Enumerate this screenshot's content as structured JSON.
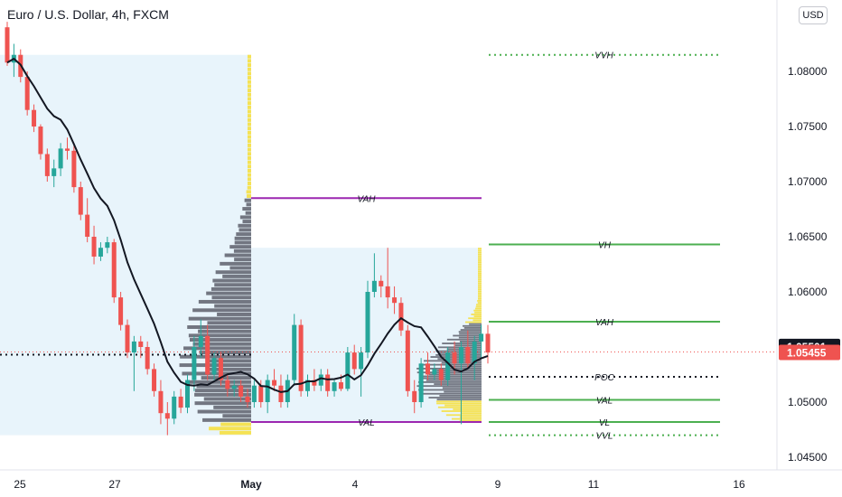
{
  "header": {
    "title": "Euro / U.S. Dollar, 4h, FXCM",
    "currency_button": "USD"
  },
  "chart_data": {
    "type": "candlestick",
    "title": "Euro / U.S. Dollar, 4h, FXCM",
    "x_ticks": [
      "25",
      "27",
      "May",
      "4",
      "9",
      "11",
      "16"
    ],
    "y_ticks": [
      "1.08000",
      "1.07500",
      "1.07000",
      "1.06500",
      "1.06000",
      "1.05500",
      "1.05000",
      "1.04500"
    ],
    "y_range": [
      1.0445,
      1.0855
    ],
    "grid": false,
    "price_labels": {
      "last": "1.05501",
      "current": "1.05455"
    },
    "colors": {
      "up": "#26a69a",
      "down": "#ef5350",
      "ma": "#131722",
      "profile_value": "#f5e04b",
      "profile": "#6b6f7a",
      "vah_val_purple": "#9c27b0",
      "green_lines": "#4caf50",
      "range_bg": "#e8f4fb"
    },
    "candles": [
      {
        "o": 1.084,
        "h": 1.0845,
        "l": 1.0805,
        "c": 1.0808
      },
      {
        "o": 1.0808,
        "h": 1.0825,
        "l": 1.0795,
        "c": 1.0815
      },
      {
        "o": 1.0815,
        "h": 1.082,
        "l": 1.079,
        "c": 1.0795
      },
      {
        "o": 1.0795,
        "h": 1.08,
        "l": 1.076,
        "c": 1.0765
      },
      {
        "o": 1.0765,
        "h": 1.077,
        "l": 1.0745,
        "c": 1.075
      },
      {
        "o": 1.075,
        "h": 1.0752,
        "l": 1.072,
        "c": 1.0725
      },
      {
        "o": 1.0725,
        "h": 1.073,
        "l": 1.07,
        "c": 1.0705
      },
      {
        "o": 1.0705,
        "h": 1.072,
        "l": 1.0695,
        "c": 1.0712
      },
      {
        "o": 1.0712,
        "h": 1.0735,
        "l": 1.0705,
        "c": 1.073
      },
      {
        "o": 1.073,
        "h": 1.074,
        "l": 1.072,
        "c": 1.0728
      },
      {
        "o": 1.0728,
        "h": 1.0735,
        "l": 1.069,
        "c": 1.0695
      },
      {
        "o": 1.0695,
        "h": 1.07,
        "l": 1.0665,
        "c": 1.067
      },
      {
        "o": 1.067,
        "h": 1.0685,
        "l": 1.0645,
        "c": 1.065
      },
      {
        "o": 1.065,
        "h": 1.066,
        "l": 1.0625,
        "c": 1.0632
      },
      {
        "o": 1.0632,
        "h": 1.0645,
        "l": 1.0628,
        "c": 1.064
      },
      {
        "o": 1.064,
        "h": 1.065,
        "l": 1.0635,
        "c": 1.0645
      },
      {
        "o": 1.0645,
        "h": 1.0648,
        "l": 1.059,
        "c": 1.0595
      },
      {
        "o": 1.0595,
        "h": 1.06,
        "l": 1.0565,
        "c": 1.057
      },
      {
        "o": 1.057,
        "h": 1.0575,
        "l": 1.054,
        "c": 1.0545
      },
      {
        "o": 1.0545,
        "h": 1.056,
        "l": 1.051,
        "c": 1.0555
      },
      {
        "o": 1.0555,
        "h": 1.056,
        "l": 1.054,
        "c": 1.055
      },
      {
        "o": 1.055,
        "h": 1.0555,
        "l": 1.0525,
        "c": 1.053
      },
      {
        "o": 1.053,
        "h": 1.0535,
        "l": 1.0505,
        "c": 1.051
      },
      {
        "o": 1.051,
        "h": 1.052,
        "l": 1.048,
        "c": 1.049
      },
      {
        "o": 1.049,
        "h": 1.05,
        "l": 1.047,
        "c": 1.0485
      },
      {
        "o": 1.0485,
        "h": 1.051,
        "l": 1.048,
        "c": 1.0505
      },
      {
        "o": 1.0505,
        "h": 1.0512,
        "l": 1.049,
        "c": 1.0495
      },
      {
        "o": 1.0495,
        "h": 1.0525,
        "l": 1.049,
        "c": 1.052
      },
      {
        "o": 1.052,
        "h": 1.056,
        "l": 1.051,
        "c": 1.055
      },
      {
        "o": 1.055,
        "h": 1.0575,
        "l": 1.054,
        "c": 1.056
      },
      {
        "o": 1.056,
        "h": 1.057,
        "l": 1.052,
        "c": 1.0525
      },
      {
        "o": 1.0525,
        "h": 1.0545,
        "l": 1.052,
        "c": 1.054
      },
      {
        "o": 1.054,
        "h": 1.0545,
        "l": 1.0515,
        "c": 1.052
      },
      {
        "o": 1.052,
        "h": 1.0525,
        "l": 1.0505,
        "c": 1.0512
      },
      {
        "o": 1.0512,
        "h": 1.052,
        "l": 1.0505,
        "c": 1.0515
      },
      {
        "o": 1.0515,
        "h": 1.052,
        "l": 1.05,
        "c": 1.0505
      },
      {
        "o": 1.0505,
        "h": 1.0512,
        "l": 1.0495,
        "c": 1.05
      },
      {
        "o": 1.05,
        "h": 1.052,
        "l": 1.0495,
        "c": 1.0515
      },
      {
        "o": 1.0515,
        "h": 1.052,
        "l": 1.0495,
        "c": 1.05
      },
      {
        "o": 1.05,
        "h": 1.0525,
        "l": 1.049,
        "c": 1.052
      },
      {
        "o": 1.052,
        "h": 1.053,
        "l": 1.051,
        "c": 1.0515
      },
      {
        "o": 1.0515,
        "h": 1.0525,
        "l": 1.0495,
        "c": 1.05
      },
      {
        "o": 1.05,
        "h": 1.0525,
        "l": 1.0495,
        "c": 1.052
      },
      {
        "o": 1.052,
        "h": 1.058,
        "l": 1.0515,
        "c": 1.057
      },
      {
        "o": 1.057,
        "h": 1.0575,
        "l": 1.0505,
        "c": 1.051
      },
      {
        "o": 1.051,
        "h": 1.0525,
        "l": 1.0505,
        "c": 1.052
      },
      {
        "o": 1.052,
        "h": 1.053,
        "l": 1.051,
        "c": 1.0515
      },
      {
        "o": 1.0515,
        "h": 1.053,
        "l": 1.051,
        "c": 1.0525
      },
      {
        "o": 1.0525,
        "h": 1.053,
        "l": 1.0505,
        "c": 1.051
      },
      {
        "o": 1.051,
        "h": 1.052,
        "l": 1.0505,
        "c": 1.0518
      },
      {
        "o": 1.0518,
        "h": 1.0525,
        "l": 1.051,
        "c": 1.0512
      },
      {
        "o": 1.0512,
        "h": 1.055,
        "l": 1.051,
        "c": 1.0545
      },
      {
        "o": 1.0545,
        "h": 1.0552,
        "l": 1.0525,
        "c": 1.053
      },
      {
        "o": 1.053,
        "h": 1.055,
        "l": 1.0505,
        "c": 1.0545
      },
      {
        "o": 1.0545,
        "h": 1.061,
        "l": 1.054,
        "c": 1.06
      },
      {
        "o": 1.06,
        "h": 1.0635,
        "l": 1.0595,
        "c": 1.061
      },
      {
        "o": 1.061,
        "h": 1.0615,
        "l": 1.0595,
        "c": 1.0605
      },
      {
        "o": 1.0605,
        "h": 1.064,
        "l": 1.0585,
        "c": 1.0595
      },
      {
        "o": 1.0595,
        "h": 1.0605,
        "l": 1.058,
        "c": 1.059
      },
      {
        "o": 1.059,
        "h": 1.0595,
        "l": 1.056,
        "c": 1.0565
      },
      {
        "o": 1.0565,
        "h": 1.057,
        "l": 1.0505,
        "c": 1.051
      },
      {
        "o": 1.051,
        "h": 1.052,
        "l": 1.049,
        "c": 1.05
      },
      {
        "o": 1.05,
        "h": 1.054,
        "l": 1.0495,
        "c": 1.0535
      },
      {
        "o": 1.0535,
        "h": 1.0545,
        "l": 1.052,
        "c": 1.0525
      },
      {
        "o": 1.0525,
        "h": 1.0535,
        "l": 1.052,
        "c": 1.053
      },
      {
        "o": 1.053,
        "h": 1.0535,
        "l": 1.0515,
        "c": 1.052
      },
      {
        "o": 1.052,
        "h": 1.055,
        "l": 1.0515,
        "c": 1.0545
      },
      {
        "o": 1.0545,
        "h": 1.0555,
        "l": 1.0525,
        "c": 1.0535
      },
      {
        "o": 1.0535,
        "h": 1.0555,
        "l": 1.048,
        "c": 1.055
      },
      {
        "o": 1.055,
        "h": 1.0565,
        "l": 1.053,
        "c": 1.0535
      },
      {
        "o": 1.0535,
        "h": 1.056,
        "l": 1.052,
        "c": 1.0555
      },
      {
        "o": 1.0555,
        "h": 1.057,
        "l": 1.054,
        "c": 1.0562
      },
      {
        "o": 1.0562,
        "h": 1.057,
        "l": 1.0535,
        "c": 1.0545
      }
    ],
    "levels": [
      {
        "label": "VVH",
        "price": 1.0815,
        "style": "dotted-green"
      },
      {
        "label": "VAH",
        "price": 1.0685,
        "style": "solid-purple"
      },
      {
        "label": "VH",
        "price": 1.0643,
        "style": "solid-green"
      },
      {
        "label": "VAH",
        "price": 1.0573,
        "style": "solid-green"
      },
      {
        "label": "POC",
        "price": 1.0523,
        "style": "dotted-black"
      },
      {
        "label": "VAL",
        "price": 1.0502,
        "style": "solid-green"
      },
      {
        "label": "VAL",
        "price": 1.0482,
        "style": "solid-purple"
      },
      {
        "label": "VL",
        "price": 1.0482,
        "style": "solid-green"
      },
      {
        "label": "VVL",
        "price": 1.047,
        "style": "dotted-green"
      }
    ],
    "poc_left_price": 1.0543
  }
}
